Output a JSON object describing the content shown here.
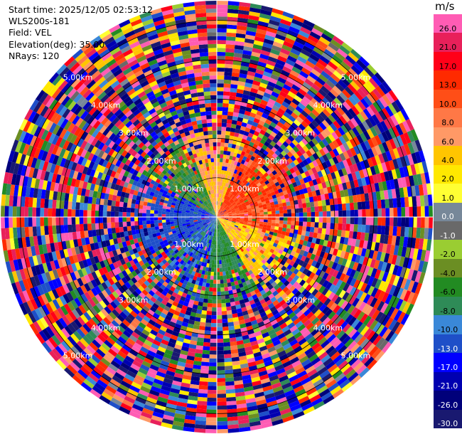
{
  "info": {
    "start_time": "Start time: 2025/12/05 02:53:12",
    "instrument": "WLS200s-181",
    "field": "Field: VEL",
    "elevation": "Elevation(deg): 35.00",
    "nrays": "NRays: 120"
  },
  "colorbar": {
    "unit": "m/s",
    "levels": [
      "26.0",
      "21.0",
      "17.0",
      "13.0",
      "10.0",
      "8.0",
      "6.0",
      "4.0",
      "2.0",
      "1.0",
      "0.0",
      "-1.0",
      "-2.0",
      "-4.0",
      "-6.0",
      "-8.0",
      "-10.0",
      "-13.0",
      "-17.0",
      "-21.0",
      "-26.0",
      "-30.0"
    ],
    "colors": [
      "#ff5cb4",
      "#e8205a",
      "#ff0018",
      "#ff2a00",
      "#ff4e17",
      "#ff7846",
      "#ff9966",
      "#ffc500",
      "#ffe800",
      "#ffff33",
      "#778899",
      "#696969",
      "#9acd32",
      "#6b8e23",
      "#228b22",
      "#2e8b57",
      "#3a88d8",
      "#1e4fc8",
      "#0000ff",
      "#0000b0",
      "#00007a",
      "#191970"
    ]
  },
  "chart_data": {
    "type": "heatmap",
    "subtype": "polar PPI scan",
    "field": "VEL",
    "unit": "m/s",
    "nrays": 120,
    "elevation_deg": 35.0,
    "range_rings_km": [
      "1.00km",
      "2.00km",
      "3.00km",
      "4.00km",
      "5.00km"
    ],
    "max_range_km": 5.5,
    "color_range": [
      -30.0,
      30.0
    ],
    "grid": true,
    "near_field": [
      {
        "sector": "west",
        "approx_velocity": -10.0
      },
      {
        "sector": "east-southeast",
        "approx_velocity": 12.0
      },
      {
        "sector": "northeast",
        "approx_velocity": 3.0
      },
      {
        "sector": "northwest",
        "approx_velocity": -6.0
      },
      {
        "sector": "south",
        "approx_velocity": 4.0
      }
    ],
    "far_field": "noise (random values across full color range)"
  }
}
